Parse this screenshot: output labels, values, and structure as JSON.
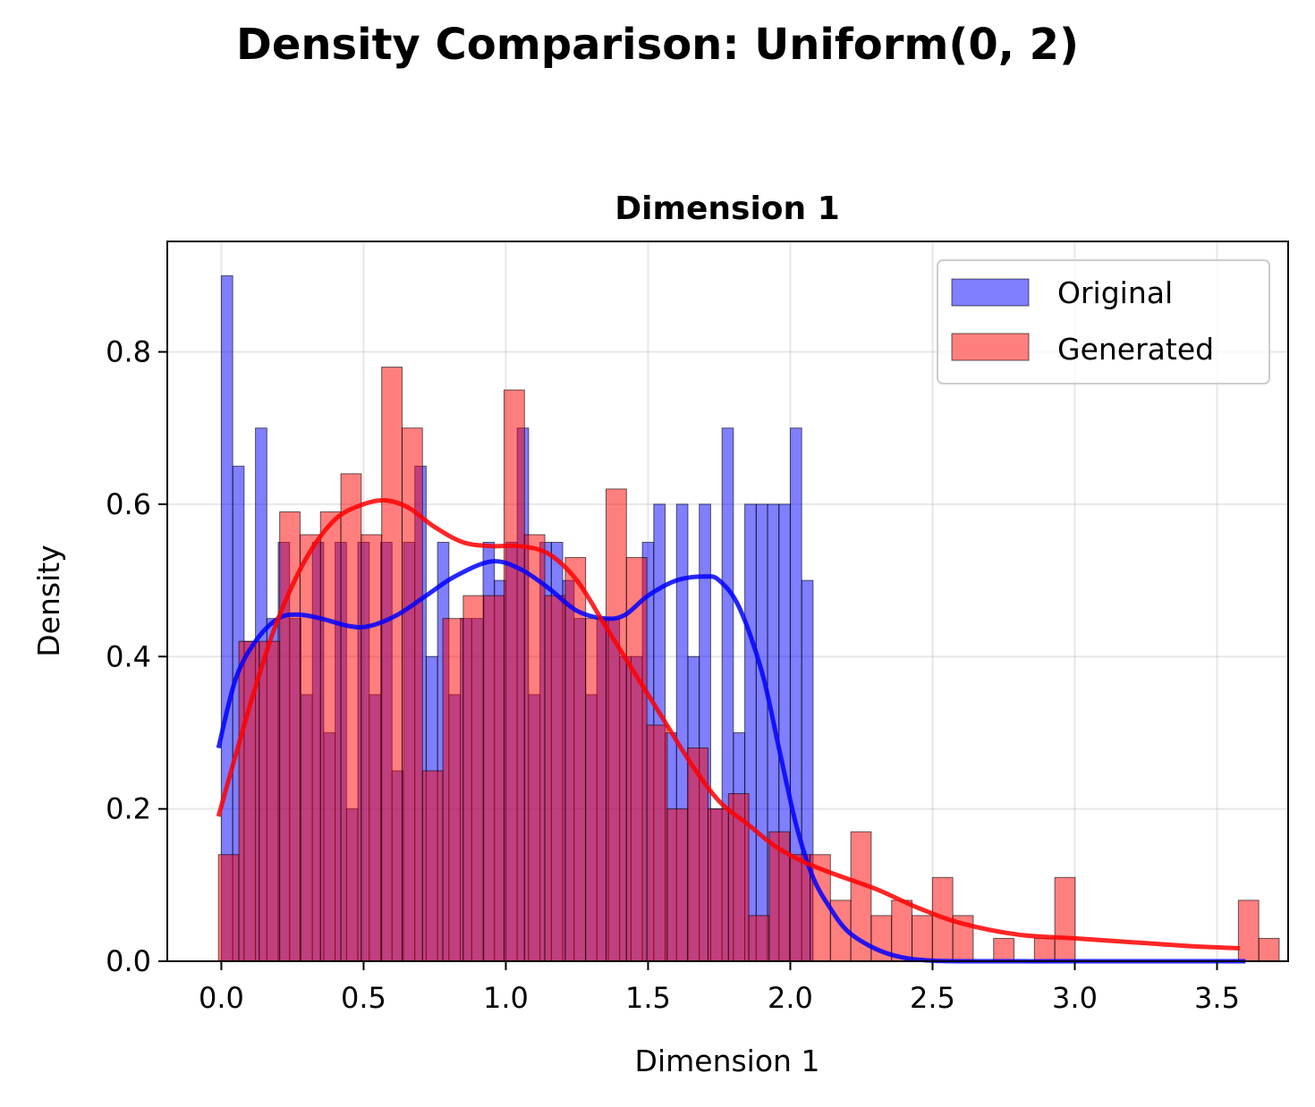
{
  "suptitle": "Density Comparison: Uniform(0, 2)",
  "chart_data": {
    "type": "bar",
    "title": "Dimension 1",
    "xlabel": "Dimension 1",
    "ylabel": "Density",
    "xlim": [
      -0.19,
      3.75
    ],
    "ylim": [
      0,
      0.945
    ],
    "xticks": [
      0.0,
      0.5,
      1.0,
      1.5,
      2.0,
      2.5,
      3.0,
      3.5
    ],
    "xtick_labels": [
      "0.0",
      "0.5",
      "1.0",
      "1.5",
      "2.0",
      "2.5",
      "3.0",
      "3.5"
    ],
    "yticks": [
      0.0,
      0.2,
      0.4,
      0.6,
      0.8
    ],
    "ytick_labels": [
      "0.0",
      "0.2",
      "0.4",
      "0.6",
      "0.8"
    ],
    "grid": true,
    "legend_position": "top-right",
    "series": [
      {
        "name": "Original",
        "kind": "histogram",
        "color": "#0000ff",
        "bin_start": 0.0,
        "bin_width": 0.04,
        "values": [
          0.9,
          0.65,
          0.42,
          0.7,
          0.45,
          0.55,
          0.45,
          0.35,
          0.55,
          0.3,
          0.55,
          0.2,
          0.55,
          0.35,
          0.55,
          0.25,
          0.55,
          0.65,
          0.4,
          0.55,
          0.35,
          0.45,
          0.45,
          0.55,
          0.5,
          0.55,
          0.7,
          0.35,
          0.55,
          0.55,
          0.5,
          0.45,
          0.35,
          0.45,
          0.45,
          0.4,
          0.4,
          0.55,
          0.6,
          0.3,
          0.6,
          0.4,
          0.6,
          0.2,
          0.7,
          0.3,
          0.6,
          0.6,
          0.6,
          0.6,
          0.7,
          0.5
        ]
      },
      {
        "name": "Generated",
        "kind": "histogram",
        "color": "#ff0000",
        "bin_start": -0.01,
        "bin_width": 0.0717,
        "values": [
          0.14,
          0.42,
          0.42,
          0.59,
          0.56,
          0.59,
          0.64,
          0.56,
          0.78,
          0.7,
          0.25,
          0.45,
          0.48,
          0.48,
          0.75,
          0.56,
          0.48,
          0.53,
          0.45,
          0.62,
          0.53,
          0.31,
          0.2,
          0.28,
          0.2,
          0.22,
          0.06,
          0.17,
          0.14,
          0.14,
          0.08,
          0.17,
          0.06,
          0.08,
          0.06,
          0.11,
          0.06,
          0.0,
          0.03,
          0.0,
          0.03,
          0.11,
          0.0,
          0.0,
          0.0,
          0.0,
          0.0,
          0.0,
          0.0,
          0.0,
          0.08,
          0.03
        ]
      }
    ],
    "kde": [
      {
        "color": "#0000ff",
        "x": [
          -0.01,
          0.05,
          0.12,
          0.2,
          0.27,
          0.35,
          0.45,
          0.52,
          0.62,
          0.72,
          0.82,
          0.95,
          1.05,
          1.15,
          1.25,
          1.35,
          1.42,
          1.5,
          1.6,
          1.7,
          1.75,
          1.82,
          1.9,
          1.96,
          2.02,
          2.08,
          2.14,
          2.2,
          2.28,
          2.36,
          2.45,
          2.6,
          3.0,
          3.4,
          3.6
        ],
        "y": [
          0.28,
          0.37,
          0.42,
          0.45,
          0.455,
          0.45,
          0.44,
          0.44,
          0.455,
          0.48,
          0.505,
          0.525,
          0.515,
          0.49,
          0.46,
          0.45,
          0.455,
          0.48,
          0.5,
          0.505,
          0.5,
          0.465,
          0.38,
          0.28,
          0.18,
          0.11,
          0.07,
          0.04,
          0.02,
          0.008,
          0.002,
          0.0,
          0.0,
          0.0,
          0.0
        ]
      },
      {
        "color": "#ff0000",
        "x": [
          -0.01,
          0.05,
          0.12,
          0.2,
          0.3,
          0.4,
          0.5,
          0.58,
          0.66,
          0.75,
          0.85,
          0.95,
          1.05,
          1.15,
          1.25,
          1.35,
          1.45,
          1.55,
          1.65,
          1.75,
          1.85,
          1.95,
          2.05,
          2.15,
          2.3,
          2.45,
          2.6,
          2.8,
          3.0,
          3.2,
          3.4,
          3.58
        ],
        "y": [
          0.19,
          0.27,
          0.36,
          0.45,
          0.53,
          0.58,
          0.6,
          0.605,
          0.595,
          0.57,
          0.55,
          0.545,
          0.545,
          0.535,
          0.5,
          0.44,
          0.38,
          0.32,
          0.26,
          0.21,
          0.18,
          0.15,
          0.13,
          0.115,
          0.095,
          0.07,
          0.05,
          0.035,
          0.03,
          0.025,
          0.02,
          0.017
        ]
      }
    ]
  }
}
